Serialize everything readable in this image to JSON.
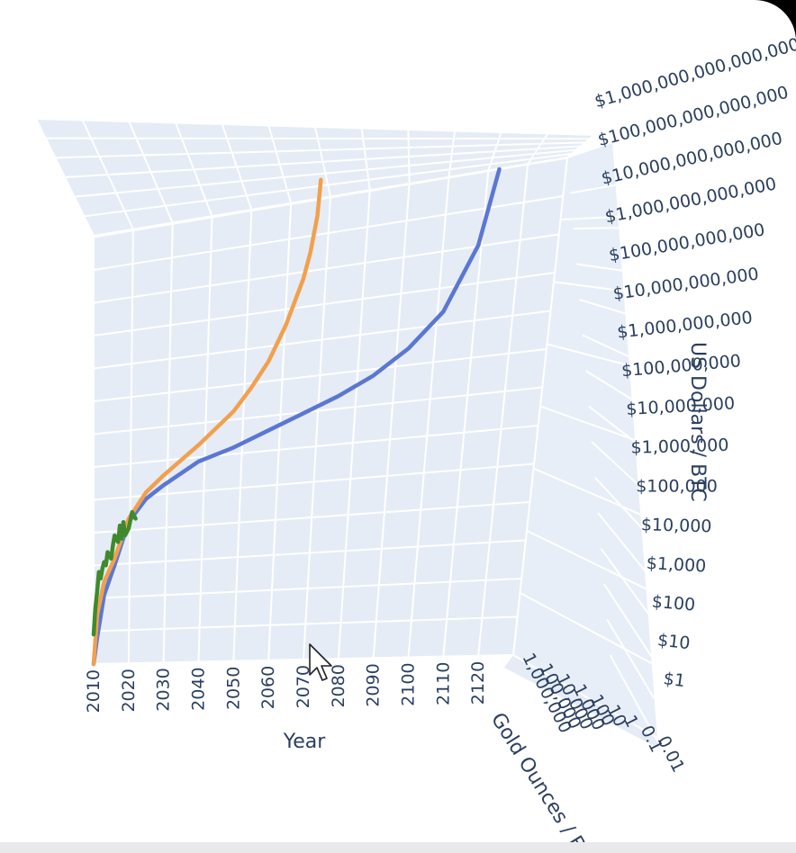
{
  "chart_data": {
    "type": "line3d",
    "x_axis": {
      "title": "Year",
      "ticks": [
        "2010",
        "2020",
        "2030",
        "2040",
        "2050",
        "2060",
        "2070",
        "2080",
        "2090",
        "2100",
        "2110",
        "2120"
      ],
      "range": [
        2010,
        2130
      ]
    },
    "y_axis": {
      "title": "Gold Ounces / BTC",
      "ticks": [
        "0.01",
        "0.1",
        "1",
        "10",
        "100",
        "1,000",
        "10,000",
        "100,000",
        "1,000,000"
      ],
      "scale": "log"
    },
    "z_axis": {
      "title": "US Dollars / BTC",
      "ticks": [
        "$1",
        "$10",
        "$100",
        "$1,000",
        "$10,000",
        "$100,000",
        "$1,000,000",
        "$10,000,000",
        "$100,000,000",
        "$1,000,000,000",
        "$10,000,000,000",
        "$100,000,000,000",
        "$1,000,000,000,000",
        "$10,000,000,000,000",
        "$100,000,000,000,000",
        "$1,000,000,000,000,000"
      ],
      "scale": "log",
      "range_log10": [
        0,
        15
      ]
    },
    "series": [
      {
        "color": "#5b77d4",
        "x": [
          2010,
          2011,
          2013,
          2016,
          2020,
          2025,
          2030,
          2040,
          2050,
          2060,
          2070,
          2080,
          2090,
          2100,
          2110,
          2120,
          2126
        ],
        "z_log10": [
          0.0,
          0.8,
          2.1,
          3.0,
          4.3,
          5.0,
          5.4,
          6.1,
          6.5,
          7.0,
          7.5,
          8.0,
          8.6,
          9.4,
          10.5,
          12.5,
          14.8
        ]
      },
      {
        "color": "#f2a04d",
        "x": [
          2010,
          2011,
          2013,
          2016,
          2020,
          2025,
          2030,
          2040,
          2050,
          2055,
          2060,
          2065,
          2070,
          2072,
          2074,
          2075
        ],
        "z_log10": [
          0.0,
          1.5,
          2.5,
          3.2,
          4.4,
          5.2,
          5.7,
          6.6,
          7.6,
          8.3,
          9.1,
          10.2,
          11.6,
          12.4,
          13.5,
          14.6
        ]
      },
      {
        "color": "#3f8a2c",
        "x": [
          2010,
          2010.5,
          2011,
          2011.5,
          2012,
          2012.5,
          2013,
          2013.5,
          2014,
          2015,
          2015.5,
          2016,
          2017,
          2017.5,
          2018,
          2018.5,
          2019,
          2020,
          2021,
          2022
        ],
        "z_log10": [
          0.9,
          1.7,
          2.2,
          2.8,
          2.6,
          2.9,
          3.1,
          3.0,
          3.4,
          3.2,
          3.6,
          3.9,
          3.7,
          4.2,
          3.8,
          4.3,
          3.9,
          4.1,
          4.6,
          4.4
        ]
      }
    ]
  }
}
